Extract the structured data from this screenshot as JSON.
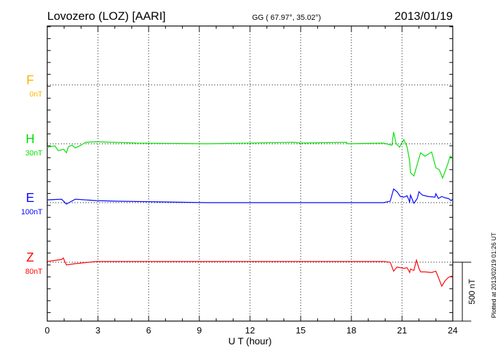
{
  "chart_data": {
    "type": "line",
    "title": "Lovozero (LOZ)  [AARI]",
    "subtitle": "GG ( 67.97°,  35.02°)",
    "date": "2013/01/19",
    "xlabel": "U T (hour)",
    "xlim": [
      0,
      24
    ],
    "xticks": [
      "0",
      "3",
      "6",
      "9",
      "12",
      "15",
      "18",
      "21",
      "24"
    ],
    "grid": true,
    "scale_bar_label": "500 nT",
    "scale_bar_nT": 500,
    "footer": "Plotted at 2013/02/19 01:26 UT",
    "series": [
      {
        "name": "F",
        "baseline_label": "0nT",
        "color": "#ffb400",
        "values": []
      },
      {
        "name": "H",
        "baseline_label": "30nT",
        "color": "#00e000",
        "values": [
          [
            0,
            -29
          ],
          [
            0.45,
            -17
          ],
          [
            0.65,
            -58
          ],
          [
            0.97,
            -46
          ],
          [
            1.13,
            -75
          ],
          [
            1.26,
            -23
          ],
          [
            1.46,
            -12
          ],
          [
            1.66,
            -35
          ],
          [
            2.0,
            -12
          ],
          [
            2.27,
            12
          ],
          [
            2.88,
            17
          ],
          [
            5.3,
            6
          ],
          [
            9.4,
            0
          ],
          [
            14.6,
            12
          ],
          [
            15,
            6
          ],
          [
            17.7,
            12
          ],
          [
            17.8,
            0
          ],
          [
            19.9,
            6
          ],
          [
            20.4,
            -12
          ],
          [
            20.5,
            98
          ],
          [
            20.65,
            0
          ],
          [
            20.85,
            -29
          ],
          [
            21.1,
            35
          ],
          [
            21.3,
            -29
          ],
          [
            21.45,
            -144
          ],
          [
            21.5,
            -242
          ],
          [
            21.7,
            -270
          ],
          [
            21.9,
            -172
          ],
          [
            22.1,
            -75
          ],
          [
            22.35,
            -104
          ],
          [
            22.75,
            -69
          ],
          [
            23.0,
            -201
          ],
          [
            23.2,
            -218
          ],
          [
            23.4,
            -288
          ],
          [
            23.7,
            -172
          ],
          [
            23.85,
            -104
          ],
          [
            24,
            -115
          ]
        ]
      },
      {
        "name": "E",
        "baseline_label": "100nT",
        "color": "#0000ff",
        "values": [
          [
            0,
            23
          ],
          [
            0.85,
            29
          ],
          [
            1.13,
            -12
          ],
          [
            1.66,
            29
          ],
          [
            2.88,
            17
          ],
          [
            4.1,
            12
          ],
          [
            9.4,
            0
          ],
          [
            19.9,
            0
          ],
          [
            20.3,
            12
          ],
          [
            20.5,
            115
          ],
          [
            20.7,
            92
          ],
          [
            20.9,
            52
          ],
          [
            21.1,
            46
          ],
          [
            21.3,
            58
          ],
          [
            21.45,
            6
          ],
          [
            21.5,
            63
          ],
          [
            21.7,
            -6
          ],
          [
            21.9,
            35
          ],
          [
            22.0,
            92
          ],
          [
            22.2,
            63
          ],
          [
            22.55,
            52
          ],
          [
            22.95,
            46
          ],
          [
            23.0,
            75
          ],
          [
            23.15,
            35
          ],
          [
            23.35,
            52
          ],
          [
            23.55,
            40
          ],
          [
            23.75,
            35
          ],
          [
            23.9,
            17
          ],
          [
            24,
            29
          ]
        ]
      },
      {
        "name": "Z",
        "baseline_label": "80nT",
        "color": "#ff0000",
        "values": [
          [
            0,
            6
          ],
          [
            0.85,
            23
          ],
          [
            0.95,
            35
          ],
          [
            1.13,
            -23
          ],
          [
            1.66,
            -12
          ],
          [
            2.88,
            6
          ],
          [
            9.4,
            6
          ],
          [
            19.9,
            6
          ],
          [
            20.3,
            0
          ],
          [
            20.5,
            -75
          ],
          [
            20.7,
            -40
          ],
          [
            21.1,
            -52
          ],
          [
            21.3,
            -46
          ],
          [
            21.45,
            -86
          ],
          [
            21.5,
            -58
          ],
          [
            21.7,
            -69
          ],
          [
            21.85,
            17
          ],
          [
            22.0,
            -52
          ],
          [
            22.1,
            -81
          ],
          [
            22.35,
            -81
          ],
          [
            22.75,
            -86
          ],
          [
            23.0,
            -75
          ],
          [
            23.15,
            -127
          ],
          [
            23.35,
            -201
          ],
          [
            23.55,
            -155
          ],
          [
            23.75,
            -127
          ],
          [
            24,
            -115
          ]
        ]
      }
    ]
  }
}
